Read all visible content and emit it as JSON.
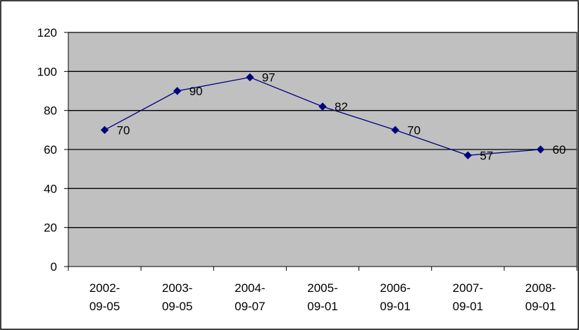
{
  "chart_data": {
    "type": "line",
    "title": "",
    "xlabel": "",
    "ylabel": "",
    "categories": [
      [
        "2002-",
        "09-05"
      ],
      [
        "2003-",
        "09-05"
      ],
      [
        "2004-",
        "09-07"
      ],
      [
        "2005-",
        "09-01"
      ],
      [
        "2006-",
        "09-01"
      ],
      [
        "2007-",
        "09-01"
      ],
      [
        "2008-",
        "09-01"
      ]
    ],
    "series": [
      {
        "values": [
          70,
          90,
          97,
          82,
          70,
          57,
          60
        ]
      }
    ],
    "ylim": [
      0,
      120
    ],
    "yticks": [
      "0",
      "20",
      "40",
      "60",
      "80",
      "100",
      "120"
    ],
    "data_labels": [
      "70",
      "90",
      "97",
      "82",
      "70",
      "57",
      "60"
    ],
    "grid": true,
    "legend": "none",
    "colors": {
      "plot_background": "#c0c0c0",
      "series_line": "#000080",
      "gridline": "#000000",
      "border": "#000000"
    },
    "marker": "diamond-icon"
  }
}
